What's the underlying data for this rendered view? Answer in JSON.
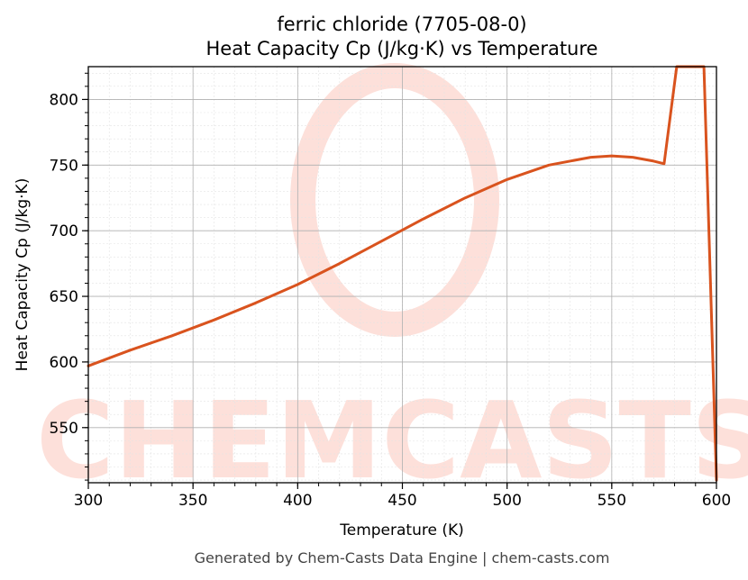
{
  "chart_data": {
    "type": "line",
    "title": "ferric chloride (7705-08-0)",
    "subtitle": "Heat Capacity Cp (J/kg·K) vs Temperature",
    "xlabel": "Temperature (K)",
    "ylabel": "Heat Capacity Cp (J/kg·K)",
    "xlim": [
      300,
      600
    ],
    "ylim": [
      508,
      825
    ],
    "xticks": [
      300,
      350,
      400,
      450,
      500,
      550,
      600
    ],
    "yticks": [
      550,
      600,
      650,
      700,
      750,
      800
    ],
    "grid": true,
    "series": [
      {
        "color": "#d9531e",
        "x": [
          300,
          320,
          340,
          360,
          380,
          400,
          420,
          440,
          460,
          480,
          500,
          520,
          540,
          550,
          560,
          570,
          575,
          581,
          594,
          600
        ],
        "y": [
          597,
          609,
          620,
          632,
          645,
          659,
          675,
          692,
          709,
          725,
          739,
          750,
          756,
          757,
          756,
          753,
          751,
          825,
          825,
          510
        ]
      }
    ]
  },
  "watermark": "CHEMCASTS",
  "footer": "Generated by Chem-Casts Data Engine | chem-casts.com"
}
